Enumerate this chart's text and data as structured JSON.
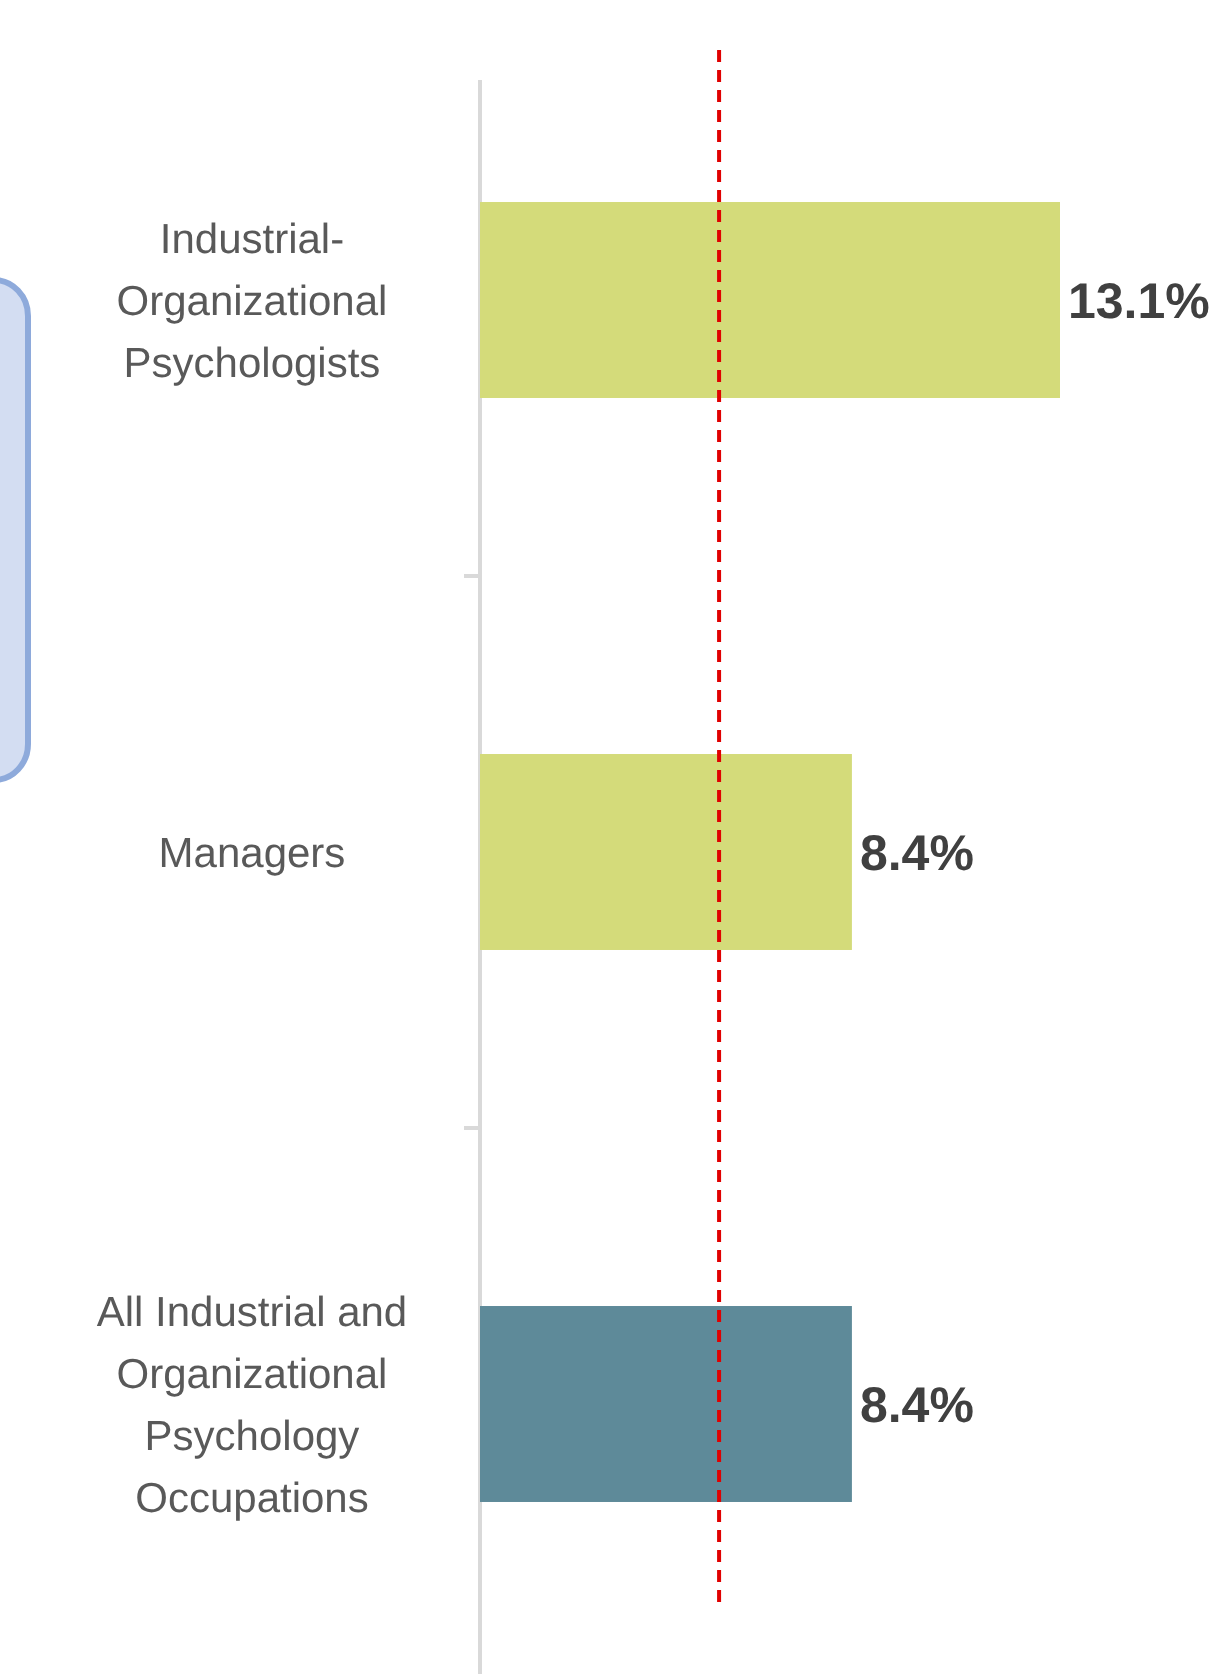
{
  "chart_data": {
    "type": "bar",
    "orientation": "horizontal",
    "categories": [
      "Industrial-Organizational Psychologists",
      "Managers",
      "All Industrial and Organizational Psychology Occupations"
    ],
    "values": [
      13.1,
      8.4,
      8.4
    ],
    "colors": [
      "#d4db7a",
      "#d4db7a",
      "#5e8a99"
    ],
    "value_labels": [
      "13.1%",
      "8.4%",
      "8.4%"
    ],
    "ref_lines": [
      {
        "axis": "x",
        "value": 5.4,
        "color": "#e00000",
        "line_style": "dashed"
      }
    ]
  }
}
